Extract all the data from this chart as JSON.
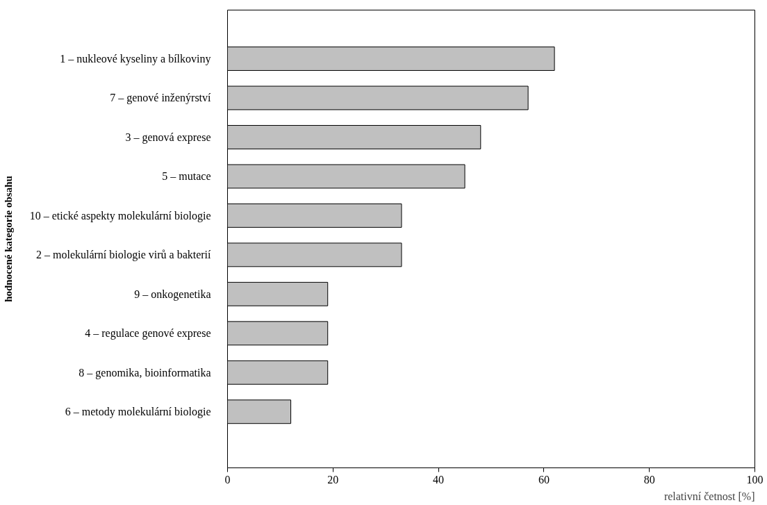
{
  "chart_data": {
    "type": "bar",
    "orientation": "horizontal",
    "ylabel": "hodnocené kategorie obsahu",
    "xlabel": "relativní četnost [%]",
    "categories": [
      "1 – nukleové kyseliny a bílkoviny",
      "7 – genové inženýrství",
      "3 – genová exprese",
      "5 – mutace",
      "10 – etické aspekty molekulární biologie",
      "2 – molekulární biologie virů a bakterií",
      "9 – onkogenetika",
      "4 – regulace genové exprese",
      "8 – genomika, bioinformatika",
      "6 – metody molekulární biologie"
    ],
    "values": [
      62,
      57,
      48,
      45,
      33,
      33,
      19,
      19,
      19,
      12
    ],
    "color": "#c0c0c0",
    "xlim": [
      0,
      100
    ],
    "xticks": [
      0,
      20,
      40,
      60,
      80,
      100
    ],
    "grid": false
  }
}
